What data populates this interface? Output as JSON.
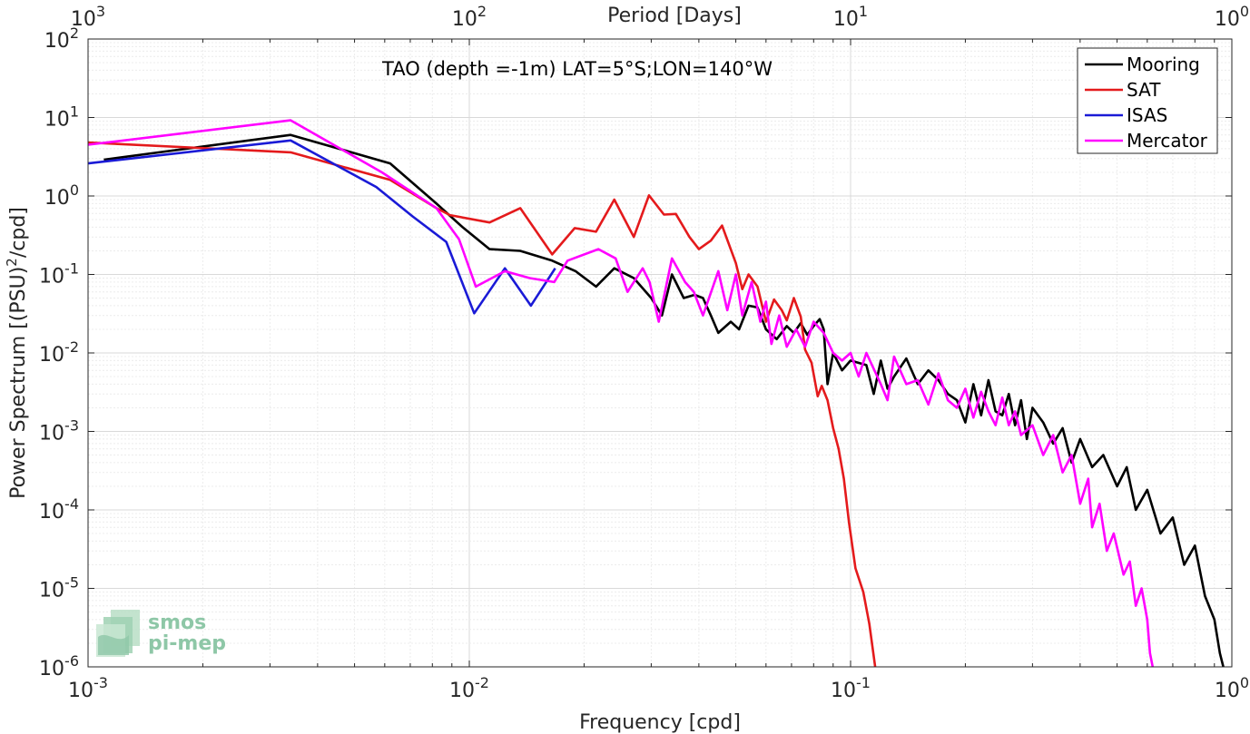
{
  "chart_data": {
    "type": "line",
    "title": "TAO (depth =-1m) LAT=5°S;LON=140°W",
    "xlabel": "Frequency [cpd]",
    "ylabel": "Power Spectrum [(PSU)",
    "ylabel_sup": "2",
    "ylabel_tail": "/cpd]",
    "x2label": "Period [Days]",
    "x_scale": "log",
    "y_scale": "log",
    "xlim": [
      0.001,
      1
    ],
    "ylim": [
      1e-06,
      100
    ],
    "grid": true,
    "legend_position": "top-right",
    "x_ticks": [
      {
        "value": 0.001,
        "base": "10",
        "exp": "-3"
      },
      {
        "value": 0.01,
        "base": "10",
        "exp": "-2"
      },
      {
        "value": 0.1,
        "base": "10",
        "exp": "-1"
      },
      {
        "value": 1,
        "base": "10",
        "exp": "0"
      }
    ],
    "y_ticks": [
      {
        "value": 1e-06,
        "base": "10",
        "exp": "-6"
      },
      {
        "value": 1e-05,
        "base": "10",
        "exp": "-5"
      },
      {
        "value": 0.0001,
        "base": "10",
        "exp": "-4"
      },
      {
        "value": 0.001,
        "base": "10",
        "exp": "-3"
      },
      {
        "value": 0.01,
        "base": "10",
        "exp": "-2"
      },
      {
        "value": 0.1,
        "base": "10",
        "exp": "-1"
      },
      {
        "value": 1,
        "base": "10",
        "exp": "0"
      },
      {
        "value": 10,
        "base": "10",
        "exp": "1"
      },
      {
        "value": 100,
        "base": "10",
        "exp": "2"
      }
    ],
    "x2_ticks": [
      {
        "value": 0.001,
        "base": "10",
        "exp": "3"
      },
      {
        "value": 0.01,
        "base": "10",
        "exp": "2"
      },
      {
        "value": 0.1,
        "base": "10",
        "exp": "1"
      },
      {
        "value": 1,
        "base": "10",
        "exp": "0"
      }
    ],
    "series": [
      {
        "name": "Mooring",
        "color": "#000000",
        "points": [
          [
            0.0011,
            2.9
          ],
          [
            0.0034,
            6.0
          ],
          [
            0.0062,
            2.6
          ],
          [
            0.0082,
            0.8
          ],
          [
            0.0096,
            0.4
          ],
          [
            0.0113,
            0.21
          ],
          [
            0.0136,
            0.2
          ],
          [
            0.0165,
            0.15
          ],
          [
            0.019,
            0.11
          ],
          [
            0.0215,
            0.07
          ],
          [
            0.024,
            0.12
          ],
          [
            0.027,
            0.09
          ],
          [
            0.03,
            0.05
          ],
          [
            0.032,
            0.03
          ],
          [
            0.034,
            0.1
          ],
          [
            0.0365,
            0.05
          ],
          [
            0.039,
            0.055
          ],
          [
            0.041,
            0.05
          ],
          [
            0.043,
            0.03
          ],
          [
            0.045,
            0.018
          ],
          [
            0.0485,
            0.025
          ],
          [
            0.051,
            0.02
          ],
          [
            0.054,
            0.04
          ],
          [
            0.057,
            0.038
          ],
          [
            0.06,
            0.02
          ],
          [
            0.064,
            0.015
          ],
          [
            0.068,
            0.022
          ],
          [
            0.071,
            0.018
          ],
          [
            0.074,
            0.024
          ],
          [
            0.077,
            0.017
          ],
          [
            0.08,
            0.022
          ],
          [
            0.083,
            0.027
          ],
          [
            0.085,
            0.02
          ],
          [
            0.087,
            0.004
          ],
          [
            0.09,
            0.01
          ],
          [
            0.095,
            0.006
          ],
          [
            0.1,
            0.008
          ],
          [
            0.11,
            0.007
          ],
          [
            0.115,
            0.003
          ],
          [
            0.12,
            0.008
          ],
          [
            0.125,
            0.0035
          ],
          [
            0.13,
            0.005
          ],
          [
            0.14,
            0.0085
          ],
          [
            0.15,
            0.004
          ],
          [
            0.16,
            0.006
          ],
          [
            0.17,
            0.0045
          ],
          [
            0.18,
            0.003
          ],
          [
            0.19,
            0.0025
          ],
          [
            0.2,
            0.0013
          ],
          [
            0.21,
            0.004
          ],
          [
            0.22,
            0.0016
          ],
          [
            0.23,
            0.0045
          ],
          [
            0.24,
            0.0018
          ],
          [
            0.25,
            0.0016
          ],
          [
            0.26,
            0.003
          ],
          [
            0.27,
            0.0012
          ],
          [
            0.28,
            0.0025
          ],
          [
            0.29,
            0.0008
          ],
          [
            0.3,
            0.002
          ],
          [
            0.32,
            0.0013
          ],
          [
            0.34,
            0.0007
          ],
          [
            0.36,
            0.0011
          ],
          [
            0.38,
            0.0004
          ],
          [
            0.4,
            0.0008
          ],
          [
            0.43,
            0.00035
          ],
          [
            0.46,
            0.0005
          ],
          [
            0.5,
            0.0002
          ],
          [
            0.53,
            0.00035
          ],
          [
            0.56,
            0.0001
          ],
          [
            0.6,
            0.00018
          ],
          [
            0.65,
            5e-05
          ],
          [
            0.7,
            8e-05
          ],
          [
            0.75,
            2e-05
          ],
          [
            0.8,
            3.5e-05
          ],
          [
            0.85,
            8e-06
          ],
          [
            0.9,
            4e-06
          ],
          [
            0.93,
            1.5e-06
          ],
          [
            0.95,
            1e-06
          ]
        ]
      },
      {
        "name": "SAT",
        "color": "#e41a1c",
        "points": [
          [
            0.001,
            4.8
          ],
          [
            0.0034,
            3.6
          ],
          [
            0.0062,
            1.6
          ],
          [
            0.0082,
            0.7
          ],
          [
            0.0089,
            0.57
          ],
          [
            0.0113,
            0.46
          ],
          [
            0.0136,
            0.7
          ],
          [
            0.0165,
            0.18
          ],
          [
            0.0189,
            0.39
          ],
          [
            0.0215,
            0.35
          ],
          [
            0.024,
            0.9
          ],
          [
            0.027,
            0.3
          ],
          [
            0.0296,
            1.02
          ],
          [
            0.0324,
            0.58
          ],
          [
            0.0348,
            0.59
          ],
          [
            0.0378,
            0.3
          ],
          [
            0.04,
            0.21
          ],
          [
            0.043,
            0.27
          ],
          [
            0.046,
            0.42
          ],
          [
            0.05,
            0.14
          ],
          [
            0.052,
            0.065
          ],
          [
            0.054,
            0.1
          ],
          [
            0.057,
            0.07
          ],
          [
            0.06,
            0.025
          ],
          [
            0.063,
            0.048
          ],
          [
            0.066,
            0.035
          ],
          [
            0.068,
            0.026
          ],
          [
            0.071,
            0.05
          ],
          [
            0.074,
            0.029
          ],
          [
            0.076,
            0.011
          ],
          [
            0.079,
            0.0075
          ],
          [
            0.082,
            0.0028
          ],
          [
            0.084,
            0.0038
          ],
          [
            0.087,
            0.0025
          ],
          [
            0.09,
            0.0011
          ],
          [
            0.093,
            0.0006
          ],
          [
            0.096,
            0.00025
          ],
          [
            0.099,
            7e-05
          ],
          [
            0.103,
            1.8e-05
          ],
          [
            0.108,
            9e-06
          ],
          [
            0.112,
            3.5e-06
          ],
          [
            0.116,
            1e-06
          ]
        ]
      },
      {
        "name": "ISAS",
        "color": "#1a1ad6",
        "points": [
          [
            0.001,
            2.6
          ],
          [
            0.0034,
            5.1
          ],
          [
            0.0057,
            1.3
          ],
          [
            0.0071,
            0.55
          ],
          [
            0.0087,
            0.26
          ],
          [
            0.0103,
            0.032
          ],
          [
            0.0124,
            0.12
          ],
          [
            0.0145,
            0.04
          ],
          [
            0.0168,
            0.12
          ]
        ]
      },
      {
        "name": "Mercator",
        "color": "#ff00ff",
        "points": [
          [
            0.001,
            4.5
          ],
          [
            0.0034,
            9.2
          ],
          [
            0.0059,
            2.0
          ],
          [
            0.0082,
            0.7
          ],
          [
            0.0094,
            0.28
          ],
          [
            0.0104,
            0.07
          ],
          [
            0.0124,
            0.11
          ],
          [
            0.0144,
            0.09
          ],
          [
            0.0167,
            0.08
          ],
          [
            0.0181,
            0.15
          ],
          [
            0.0218,
            0.21
          ],
          [
            0.0242,
            0.16
          ],
          [
            0.026,
            0.06
          ],
          [
            0.0285,
            0.12
          ],
          [
            0.0297,
            0.08
          ],
          [
            0.0314,
            0.025
          ],
          [
            0.034,
            0.16
          ],
          [
            0.0368,
            0.08
          ],
          [
            0.0388,
            0.06
          ],
          [
            0.041,
            0.03
          ],
          [
            0.045,
            0.11
          ],
          [
            0.0475,
            0.035
          ],
          [
            0.05,
            0.1
          ],
          [
            0.052,
            0.03
          ],
          [
            0.055,
            0.08
          ],
          [
            0.058,
            0.025
          ],
          [
            0.06,
            0.045
          ],
          [
            0.062,
            0.013
          ],
          [
            0.065,
            0.03
          ],
          [
            0.068,
            0.012
          ],
          [
            0.072,
            0.02
          ],
          [
            0.076,
            0.012
          ],
          [
            0.08,
            0.025
          ],
          [
            0.085,
            0.018
          ],
          [
            0.09,
            0.01
          ],
          [
            0.095,
            0.008
          ],
          [
            0.1,
            0.01
          ],
          [
            0.105,
            0.005
          ],
          [
            0.11,
            0.01
          ],
          [
            0.12,
            0.004
          ],
          [
            0.125,
            0.0025
          ],
          [
            0.13,
            0.009
          ],
          [
            0.14,
            0.004
          ],
          [
            0.15,
            0.0045
          ],
          [
            0.16,
            0.0022
          ],
          [
            0.17,
            0.0055
          ],
          [
            0.18,
            0.0025
          ],
          [
            0.19,
            0.002
          ],
          [
            0.2,
            0.0035
          ],
          [
            0.21,
            0.0015
          ],
          [
            0.22,
            0.0032
          ],
          [
            0.23,
            0.0018
          ],
          [
            0.24,
            0.0012
          ],
          [
            0.25,
            0.0027
          ],
          [
            0.26,
            0.0012
          ],
          [
            0.27,
            0.0018
          ],
          [
            0.28,
            0.0009
          ],
          [
            0.3,
            0.0012
          ],
          [
            0.32,
            0.0005
          ],
          [
            0.34,
            0.0009
          ],
          [
            0.36,
            0.0003
          ],
          [
            0.38,
            0.0005
          ],
          [
            0.4,
            0.00012
          ],
          [
            0.42,
            0.00025
          ],
          [
            0.43,
            6e-05
          ],
          [
            0.45,
            0.00012
          ],
          [
            0.47,
            3e-05
          ],
          [
            0.49,
            5e-05
          ],
          [
            0.52,
            1.5e-05
          ],
          [
            0.54,
            2.2e-05
          ],
          [
            0.56,
            6e-06
          ],
          [
            0.58,
            1e-05
          ],
          [
            0.6,
            4e-06
          ],
          [
            0.61,
            1.5e-06
          ],
          [
            0.62,
            1e-06
          ]
        ]
      }
    ]
  },
  "logo": {
    "line1": "smos",
    "line2": "pi-mep"
  }
}
